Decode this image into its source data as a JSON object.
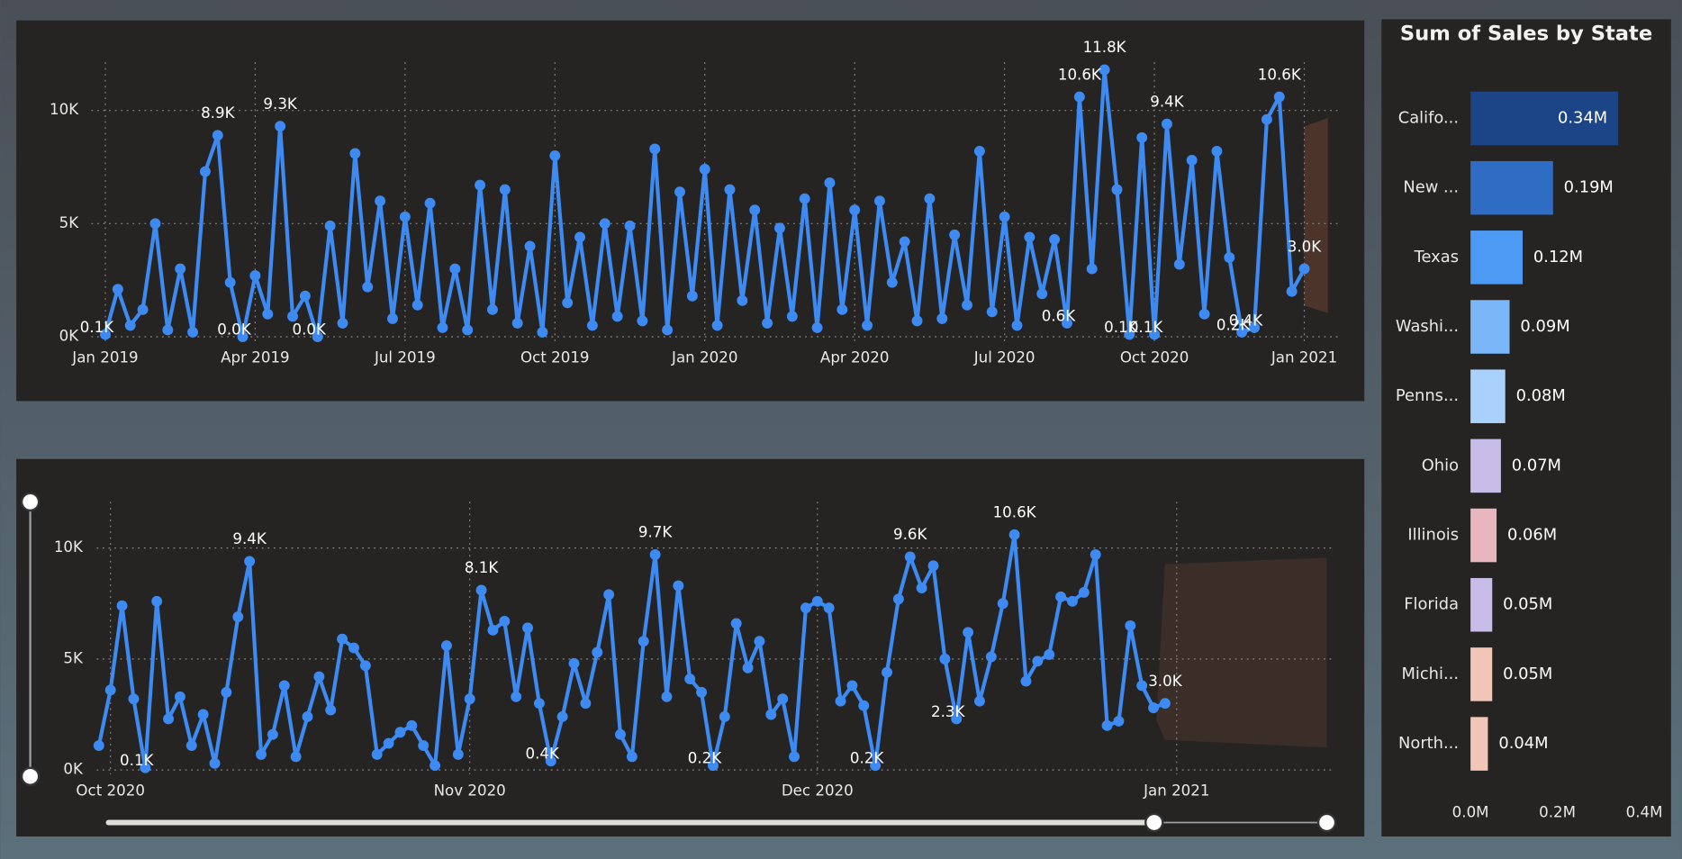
{
  "chart_data": [
    {
      "type": "line",
      "color": "#3d8bf2",
      "markers": true,
      "grid": true,
      "categories": [
        "Jan 2019",
        null,
        null,
        null,
        null,
        null,
        null,
        null,
        null,
        null,
        null,
        null,
        "Apr 2019",
        null,
        null,
        null,
        null,
        null,
        null,
        null,
        null,
        null,
        null,
        null,
        "Jul 2019",
        null,
        null,
        null,
        null,
        null,
        null,
        null,
        null,
        null,
        null,
        null,
        "Oct 2019",
        null,
        null,
        null,
        null,
        null,
        null,
        null,
        null,
        null,
        null,
        null,
        "Jan 2020",
        null,
        null,
        null,
        null,
        null,
        null,
        null,
        null,
        null,
        null,
        null,
        "Apr 2020",
        null,
        null,
        null,
        null,
        null,
        null,
        null,
        null,
        null,
        null,
        null,
        "Jul 2020",
        null,
        null,
        null,
        null,
        null,
        null,
        null,
        null,
        null,
        null,
        null,
        "Oct 2020",
        null,
        null,
        null,
        null,
        null,
        null,
        null,
        null,
        null,
        null,
        null,
        "Jan 2021"
      ],
      "values": [
        100,
        2100,
        500,
        1200,
        5000,
        300,
        3000,
        200,
        7300,
        8900,
        2400,
        0,
        2700,
        1000,
        9300,
        900,
        1800,
        0,
        4900,
        600,
        8100,
        2200,
        6000,
        800,
        5300,
        1400,
        5900,
        400,
        3000,
        300,
        6700,
        1200,
        6500,
        600,
        4000,
        200,
        8000,
        1500,
        4400,
        500,
        5000,
        900,
        4900,
        700,
        8300,
        300,
        6400,
        1800,
        7400,
        500,
        6500,
        1600,
        5600,
        600,
        4800,
        900,
        6100,
        400,
        6800,
        1200,
        5600,
        500,
        6000,
        2400,
        4200,
        700,
        6100,
        800,
        4500,
        1400,
        8200,
        1100,
        5300,
        500,
        4400,
        1900,
        4300,
        600,
        10600,
        3000,
        11800,
        6500,
        100,
        8800,
        100,
        9400,
        3200,
        7800,
        1000,
        8200,
        3500,
        200,
        400,
        9600,
        10600,
        2000,
        3000
      ],
      "value_labels": [
        "0.1K",
        null,
        null,
        null,
        null,
        null,
        null,
        null,
        null,
        "8.9K",
        null,
        "0.0K",
        null,
        null,
        "9.3K",
        null,
        null,
        "0.0K",
        null,
        null,
        null,
        null,
        null,
        null,
        null,
        null,
        null,
        null,
        null,
        null,
        null,
        null,
        null,
        null,
        null,
        null,
        null,
        null,
        null,
        null,
        null,
        null,
        null,
        null,
        null,
        null,
        null,
        null,
        null,
        null,
        null,
        null,
        null,
        null,
        null,
        null,
        null,
        null,
        null,
        null,
        null,
        null,
        null,
        null,
        null,
        null,
        null,
        null,
        null,
        null,
        null,
        null,
        null,
        null,
        null,
        null,
        null,
        "0.6K",
        "10.6K",
        null,
        "11.8K",
        null,
        "0.1K",
        null,
        "0.1K",
        "9.4K",
        null,
        null,
        null,
        null,
        null,
        "0.2K",
        "0.4K",
        null,
        "10.6K",
        null,
        "3.0K"
      ],
      "ylim": [
        0,
        12000
      ],
      "yticks": [
        {
          "value": 0,
          "label": "0K"
        },
        {
          "value": 5000,
          "label": "5K"
        },
        {
          "value": 10000,
          "label": "10K"
        }
      ]
    },
    {
      "type": "line",
      "color": "#3d8bf2",
      "markers": true,
      "grid": true,
      "categories": [
        null,
        "Oct 2020",
        null,
        null,
        null,
        null,
        null,
        null,
        null,
        null,
        null,
        null,
        null,
        null,
        null,
        null,
        null,
        null,
        null,
        null,
        null,
        null,
        null,
        null,
        null,
        null,
        null,
        null,
        null,
        null,
        null,
        null,
        "Nov 2020",
        null,
        null,
        null,
        null,
        null,
        null,
        null,
        null,
        null,
        null,
        null,
        null,
        null,
        null,
        null,
        null,
        null,
        null,
        null,
        null,
        null,
        null,
        null,
        null,
        null,
        null,
        null,
        null,
        null,
        "Dec 2020",
        null,
        null,
        null,
        null,
        null,
        null,
        null,
        null,
        null,
        null,
        null,
        null,
        null,
        null,
        null,
        null,
        null,
        null,
        null,
        null,
        null,
        null,
        null,
        null,
        null,
        null,
        null,
        null,
        null,
        null,
        "Jan 2021"
      ],
      "values": [
        1100,
        3600,
        7400,
        3200,
        100,
        7600,
        2300,
        3300,
        1100,
        2500,
        300,
        3500,
        6900,
        9400,
        700,
        1600,
        3800,
        600,
        2400,
        4200,
        2700,
        5900,
        5500,
        4700,
        700,
        1200,
        1700,
        2000,
        1100,
        200,
        5600,
        700,
        3200,
        8100,
        6300,
        6700,
        3300,
        6400,
        3000,
        400,
        2400,
        4800,
        3000,
        5300,
        7900,
        1600,
        600,
        5800,
        9700,
        3300,
        8300,
        4100,
        3500,
        200,
        2400,
        6600,
        4600,
        5800,
        2500,
        3200,
        600,
        7300,
        7600,
        7300,
        3100,
        3800,
        2900,
        200,
        4400,
        7700,
        9600,
        8200,
        9200,
        5000,
        2300,
        6200,
        3100,
        5100,
        7500,
        10600,
        4000,
        4900,
        5200,
        7800,
        7600,
        8000,
        9700,
        2000,
        2200,
        6500,
        3800,
        2800,
        3000,
        null
      ],
      "value_labels": [
        null,
        null,
        null,
        null,
        "0.1K",
        null,
        null,
        null,
        null,
        null,
        null,
        null,
        null,
        "9.4K",
        null,
        null,
        null,
        null,
        null,
        null,
        null,
        null,
        null,
        null,
        null,
        null,
        null,
        null,
        null,
        null,
        null,
        null,
        null,
        "8.1K",
        null,
        null,
        null,
        null,
        null,
        "0.4K",
        null,
        null,
        null,
        null,
        null,
        null,
        null,
        null,
        "9.7K",
        null,
        null,
        null,
        null,
        "0.2K",
        null,
        null,
        null,
        null,
        null,
        null,
        null,
        null,
        null,
        null,
        null,
        null,
        null,
        "0.2K",
        null,
        null,
        "9.6K",
        null,
        null,
        null,
        "2.3K",
        null,
        null,
        null,
        null,
        "10.6K",
        null,
        null,
        null,
        null,
        null,
        null,
        null,
        null,
        null,
        null,
        null,
        null,
        "3.0K",
        null
      ],
      "ylim": [
        0,
        12000
      ],
      "yticks": [
        {
          "value": 0,
          "label": "0K"
        },
        {
          "value": 5000,
          "label": "5K"
        },
        {
          "value": 10000,
          "label": "10K"
        }
      ]
    },
    {
      "type": "hbar",
      "title": "Sum of Sales by State",
      "categories": [
        "Califo...",
        "New ...",
        "Texas",
        "Washi...",
        "Penns...",
        "Ohio",
        "Illinois",
        "Florida",
        "Michi...",
        "North..."
      ],
      "values": [
        340000,
        190000,
        120000,
        90000,
        80000,
        70000,
        60000,
        50000,
        50000,
        40000
      ],
      "value_labels": [
        "0.34M",
        "0.19M",
        "0.12M",
        "0.09M",
        "0.08M",
        "0.07M",
        "0.06M",
        "0.05M",
        "0.05M",
        "0.04M"
      ],
      "colors": [
        "#1c4587",
        "#2f6cc4",
        "#4d9af5",
        "#7ab6f8",
        "#a9d1fb",
        "#c8bde9",
        "#e9b6bf",
        "#c8bde9",
        "#f2c6b6",
        "#f2c6b6"
      ],
      "xlim": [
        0,
        400000
      ],
      "xticks": [
        {
          "value": 0,
          "label": "0.0M"
        },
        {
          "value": 200000,
          "label": "0.2M"
        },
        {
          "value": 400000,
          "label": "0.4M"
        }
      ]
    }
  ]
}
